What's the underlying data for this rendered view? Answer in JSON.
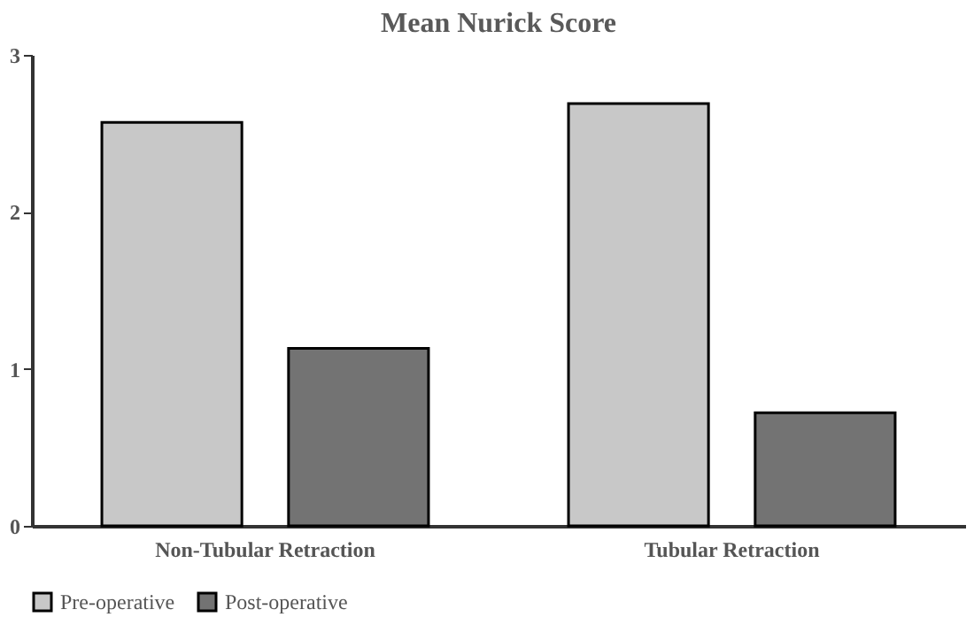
{
  "chart_data": {
    "type": "bar",
    "title": "Mean Nurick Score",
    "categories": [
      "Non-Tubular Retraction",
      "Tubular Retraction"
    ],
    "series": [
      {
        "name": "Pre-operative",
        "color": "#c8c8c8",
        "values": [
          2.57,
          2.69
        ]
      },
      {
        "name": "Post-operative",
        "color": "#737373",
        "values": [
          1.13,
          0.72
        ]
      }
    ],
    "ylim": [
      0,
      3
    ],
    "yticks": [
      0,
      1,
      2,
      3
    ],
    "grid": false,
    "legend": "bottom"
  }
}
